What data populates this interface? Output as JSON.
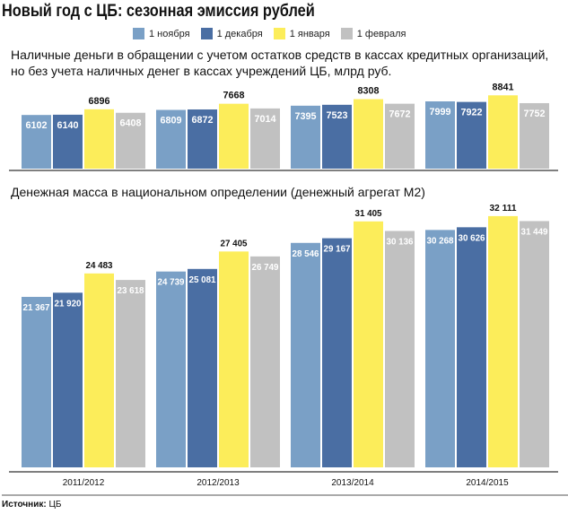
{
  "title": "Новый год с ЦБ: сезонная эмиссия рублей",
  "source_label": "Источник:",
  "source_value": "ЦБ",
  "chart_data": [
    {
      "type": "bar",
      "title": "Наличные деньги в обращении с учетом остатков средств в кассах кредитных организаций, но без учета наличных денег в кассах учреждений ЦБ, млрд руб.",
      "categories": [
        "2011/2012",
        "2012/2013",
        "2013/2014",
        "2014/2015"
      ],
      "series": [
        {
          "name": "1 ноября",
          "color": "#7aa0c6",
          "values": [
            6102,
            6809,
            7395,
            7999
          ]
        },
        {
          "name": "1 декабря",
          "color": "#4a6ea3",
          "values": [
            6140,
            6872,
            7523,
            7922
          ]
        },
        {
          "name": "1 января",
          "color": "#fced5a",
          "values": [
            6896,
            7668,
            8308,
            8841
          ]
        },
        {
          "name": "1 февраля",
          "color": "#c1c1c1",
          "values": [
            6408,
            7014,
            7672,
            7752
          ]
        }
      ],
      "labels": [
        "6102",
        "6809",
        "7395",
        "7999",
        "6140",
        "6872",
        "7523",
        "7922",
        "6896",
        "7668",
        "8308",
        "8841",
        "6408",
        "7014",
        "7672",
        "7752"
      ],
      "grid": false,
      "legend": "top"
    },
    {
      "type": "bar",
      "title": "Денежная масса в национальном определении (денежный агрегат М2)",
      "categories": [
        "2011/2012",
        "2012/2013",
        "2013/2014",
        "2014/2015"
      ],
      "series": [
        {
          "name": "1 ноября",
          "color": "#7aa0c6",
          "values": [
            21367,
            24739,
            28546,
            30268
          ]
        },
        {
          "name": "1 декабря",
          "color": "#4a6ea3",
          "values": [
            21920,
            25081,
            29167,
            30626
          ]
        },
        {
          "name": "1 января",
          "color": "#fced5a",
          "values": [
            24483,
            27405,
            31405,
            32111
          ]
        },
        {
          "name": "1 февраля",
          "color": "#c1c1c1",
          "values": [
            23618,
            26749,
            30136,
            31449
          ]
        }
      ],
      "labels": [
        "21 367",
        "24 739",
        "28 546",
        "30 268",
        "21 920",
        "25 081",
        "29 167",
        "30 626",
        "24 483",
        "27 405",
        "31 405",
        "32 111",
        "23 618",
        "26 749",
        "30 136",
        "31 449"
      ],
      "grid": false,
      "legend": "top"
    }
  ]
}
